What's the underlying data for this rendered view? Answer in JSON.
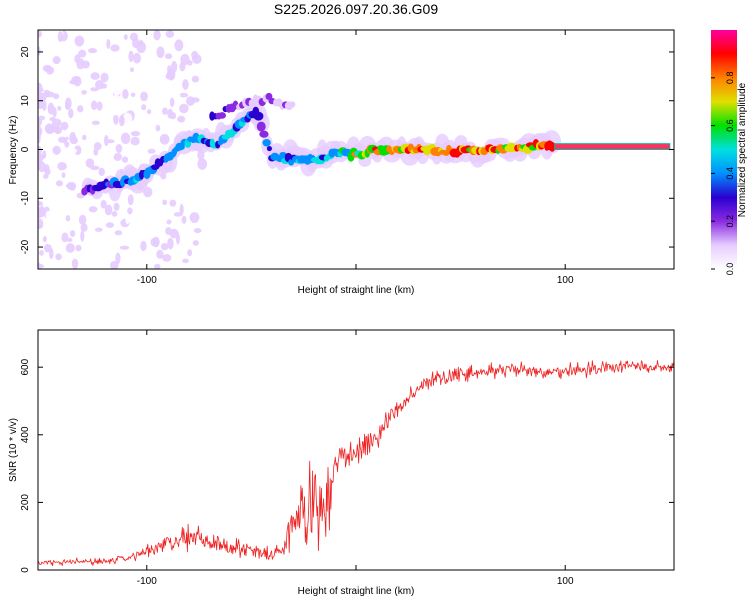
{
  "figure": {
    "title": "S225.2026.097.20.36.G09"
  },
  "chart_data": [
    {
      "type": "heatmap",
      "title": "S225.2026.097.20.36.G09",
      "xlabel": "Height of straight line (km)",
      "ylabel": "Frequency (Hz)",
      "xlim": [
        -152,
        152
      ],
      "ylim": [
        -24.5,
        24.5
      ],
      "xticks": [
        -100,
        0,
        100
      ],
      "xticklabels": [
        "-100",
        "",
        "100"
      ],
      "yticks": [
        -20,
        -10,
        0,
        10,
        20
      ],
      "yticklabels": [
        "-20",
        "-10",
        "0",
        "10",
        "20"
      ],
      "colorbar": {
        "label": "Normalized spectral amplitude",
        "range": [
          0.0,
          1.0
        ],
        "ticks": [
          0.0,
          0.2,
          0.4,
          0.6,
          0.8
        ],
        "ticklabels": [
          "0.0",
          "0.2",
          "0.4",
          "0.6",
          "0.8"
        ],
        "colormap": [
          "#ffffff",
          "#e6ccff",
          "#8a2be2",
          "#2a00d0",
          "#0090ff",
          "#00e0e0",
          "#00e000",
          "#e0e000",
          "#ff8000",
          "#ff0000",
          "#ff00a0"
        ]
      },
      "ridge": [
        {
          "x": -130,
          "f": -8.5,
          "a": 0.28
        },
        {
          "x": -118,
          "f": -7.2,
          "a": 0.35
        },
        {
          "x": -106,
          "f": -6.5,
          "a": 0.45
        },
        {
          "x": -97,
          "f": -4.0,
          "a": 0.4
        },
        {
          "x": -86,
          "f": 0.0,
          "a": 0.45
        },
        {
          "x": -76,
          "f": 2.5,
          "a": 0.5
        },
        {
          "x": -66,
          "f": 1.0,
          "a": 0.45
        },
        {
          "x": -56,
          "f": 5.0,
          "a": 0.5
        },
        {
          "x": -48,
          "f": 8.0,
          "a": 0.3
        },
        {
          "x": -40,
          "f": -1.5,
          "a": 0.4
        },
        {
          "x": -30,
          "f": -2.0,
          "a": 0.45
        },
        {
          "x": -18,
          "f": -2.0,
          "a": 0.5
        },
        {
          "x": -8,
          "f": -0.5,
          "a": 0.55
        },
        {
          "x": 0,
          "f": -1.0,
          "a": 0.7
        },
        {
          "x": 8,
          "f": -0.2,
          "a": 0.75
        },
        {
          "x": 20,
          "f": 0.0,
          "a": 0.85
        },
        {
          "x": 35,
          "f": 0.0,
          "a": 0.8
        },
        {
          "x": 50,
          "f": -0.2,
          "a": 0.9
        },
        {
          "x": 65,
          "f": 0.0,
          "a": 0.9
        },
        {
          "x": 80,
          "f": 0.5,
          "a": 0.85
        },
        {
          "x": 95,
          "f": 0.6,
          "a": 0.95
        },
        {
          "x": 120,
          "f": 0.6,
          "a": 1.0
        },
        {
          "x": 150,
          "f": 0.6,
          "a": 1.0
        }
      ],
      "upper_branch": [
        {
          "x": -70,
          "f": 6.0,
          "a": 0.35
        },
        {
          "x": -60,
          "f": 8.5,
          "a": 0.3
        },
        {
          "x": -45,
          "f": 10.5,
          "a": 0.2
        },
        {
          "x": -30,
          "f": 9.0,
          "a": 0.2
        }
      ]
    },
    {
      "type": "line",
      "xlabel": "Height of straight line (km)",
      "ylabel": "SNR (10 * v/v)",
      "xlim": [
        -152,
        152
      ],
      "ylim": [
        0,
        710
      ],
      "xticks": [
        -100,
        0,
        100
      ],
      "xticklabels": [
        "-100",
        "",
        "100"
      ],
      "yticks": [
        0,
        200,
        400,
        600
      ],
      "yticklabels": [
        "0",
        "200",
        "400",
        "600"
      ],
      "line_color": "#ee2222",
      "series": [
        {
          "name": "SNR",
          "x": [
            -152,
            -140,
            -130,
            -120,
            -110,
            -100,
            -92,
            -85,
            -78,
            -72,
            -65,
            -58,
            -50,
            -45,
            -40,
            -35,
            -30,
            -26,
            -22,
            -18,
            -14,
            -10,
            -5,
            0,
            5,
            10,
            15,
            20,
            30,
            40,
            50,
            60,
            70,
            80,
            90,
            100,
            110,
            120,
            130,
            140,
            152
          ],
          "mean": [
            22,
            22,
            25,
            25,
            35,
            55,
            75,
            95,
            90,
            85,
            80,
            70,
            55,
            48,
            42,
            60,
            150,
            170,
            175,
            175,
            170,
            320,
            340,
            340,
            380,
            390,
            440,
            480,
            540,
            570,
            580,
            585,
            590,
            590,
            580,
            590,
            595,
            600,
            605,
            600,
            600
          ],
          "noise": [
            12,
            12,
            12,
            15,
            20,
            25,
            35,
            45,
            50,
            45,
            40,
            35,
            30,
            28,
            25,
            40,
            110,
            160,
            170,
            160,
            120,
            70,
            55,
            50,
            50,
            45,
            40,
            35,
            30,
            35,
            30,
            30,
            30,
            30,
            30,
            28,
            28,
            25,
            25,
            25,
            25
          ]
        }
      ]
    }
  ]
}
